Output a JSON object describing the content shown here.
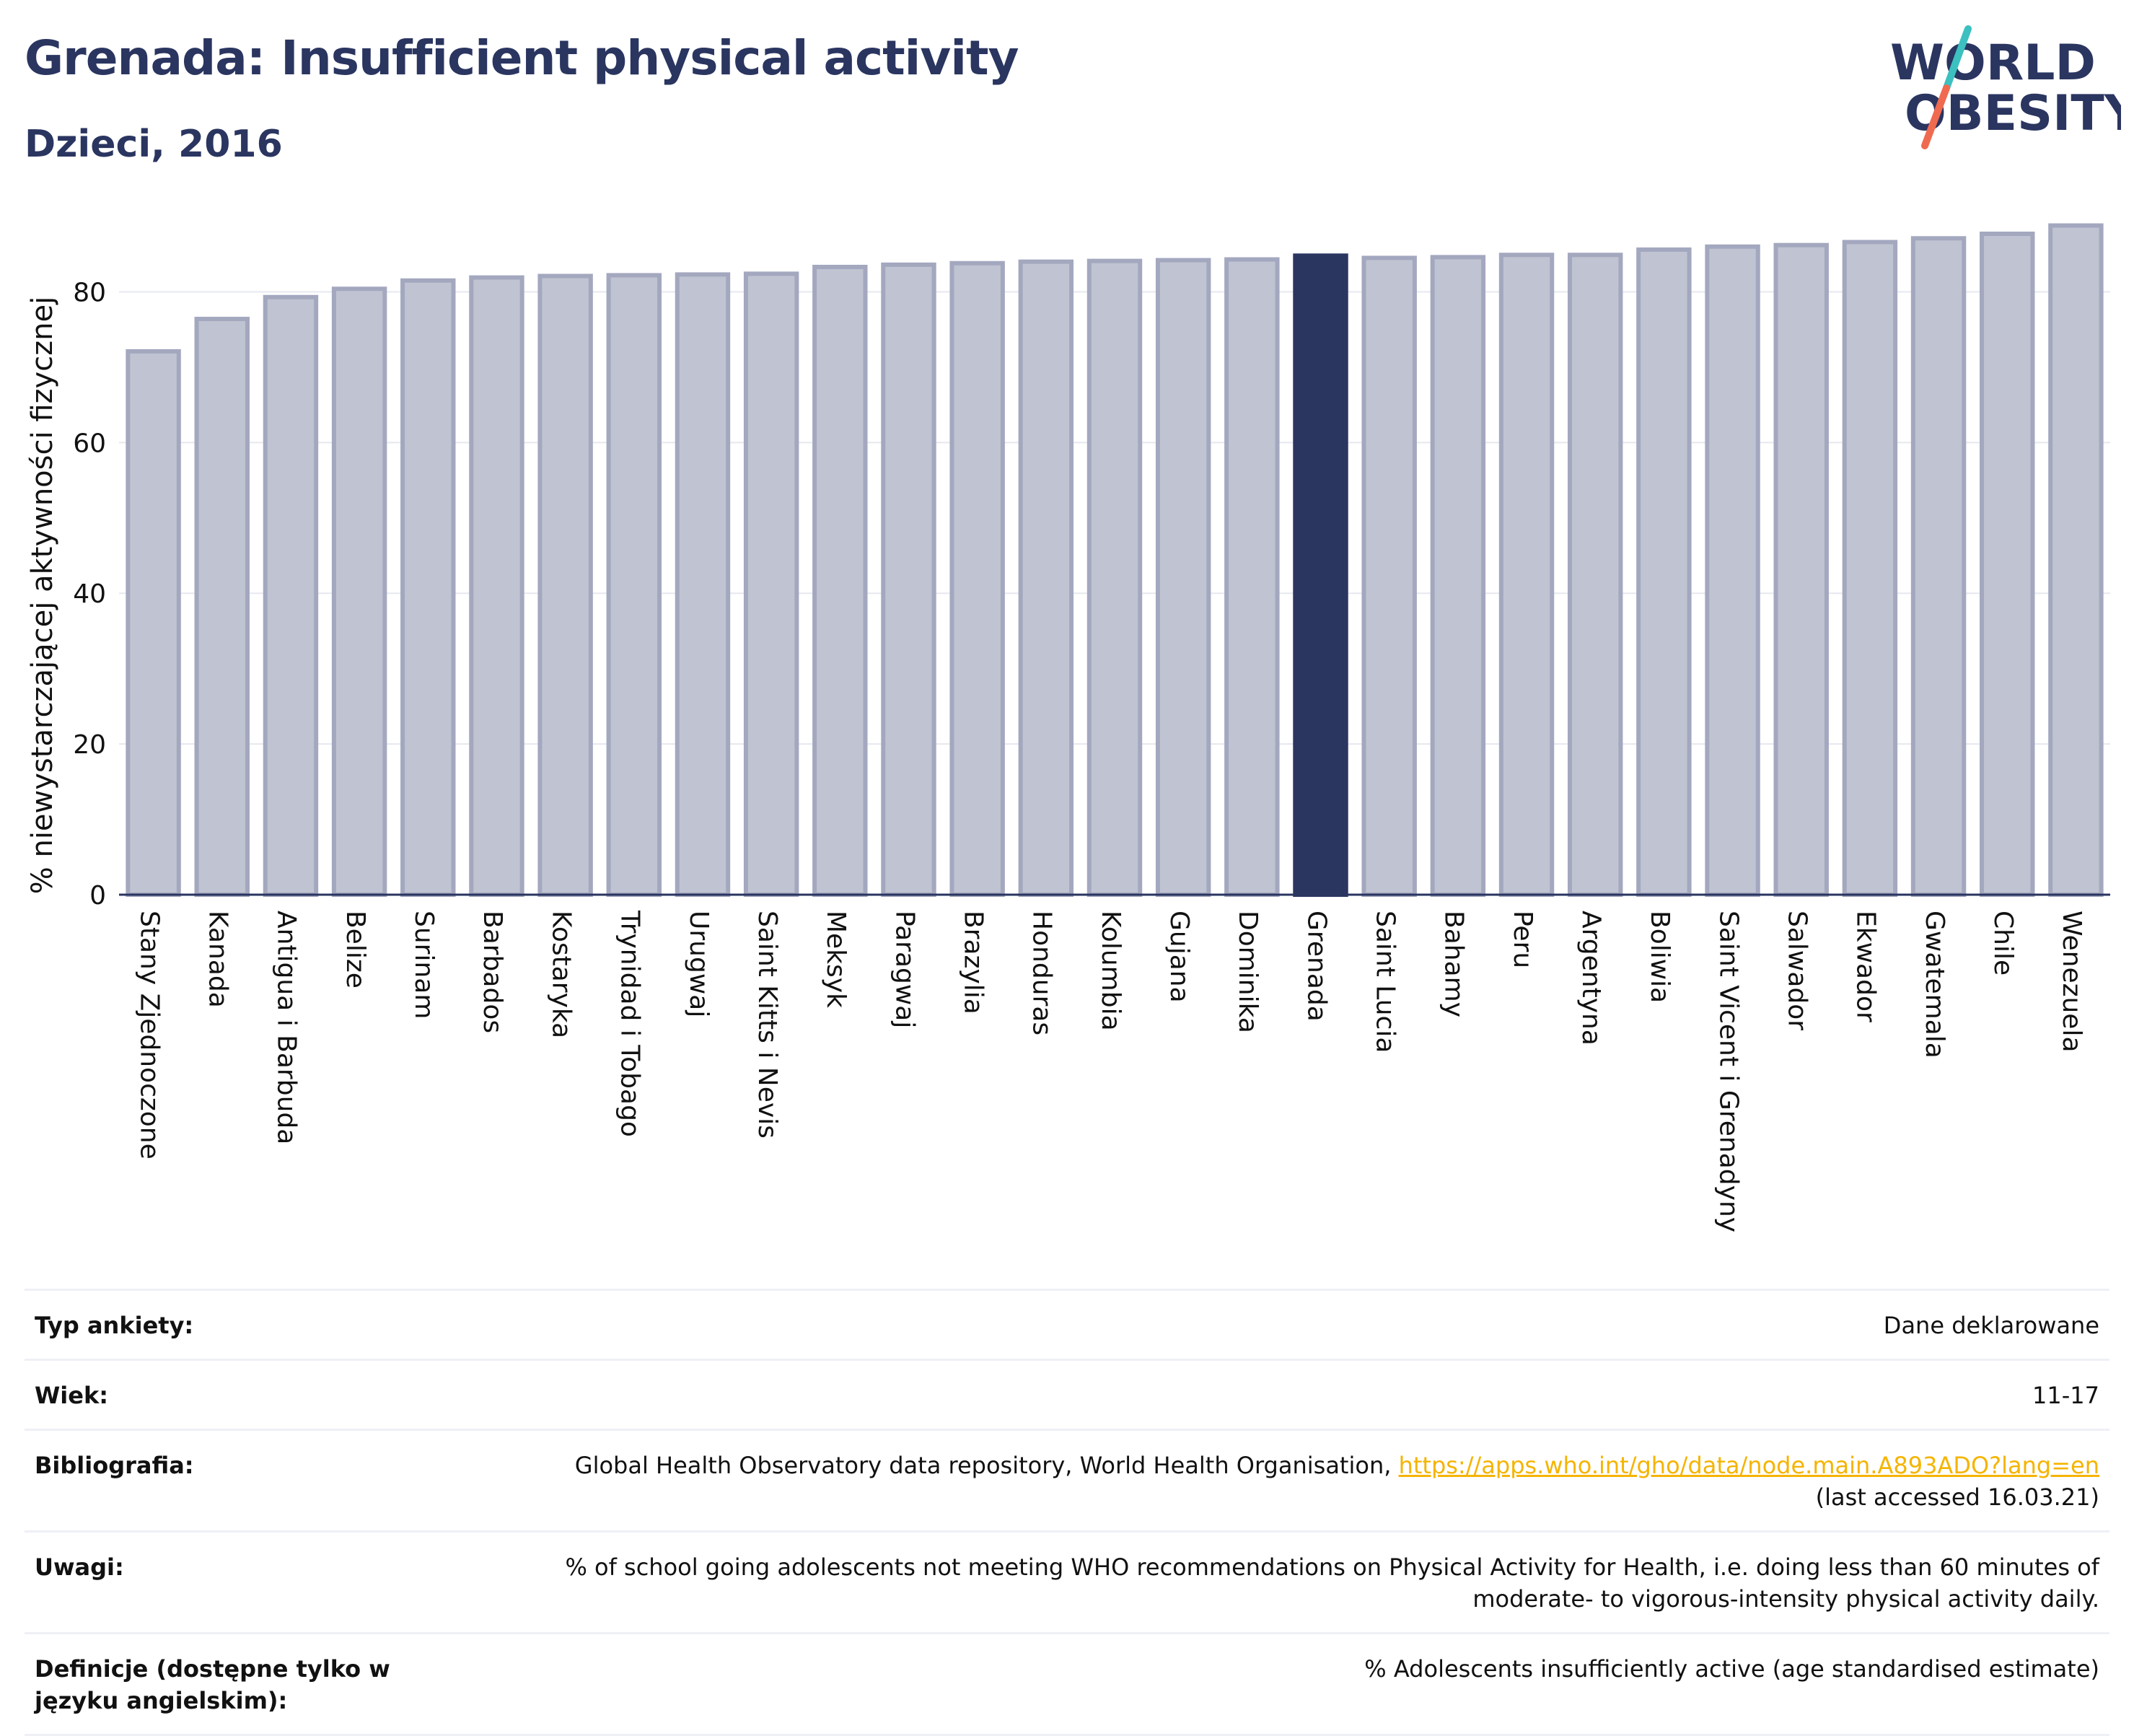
{
  "header": {
    "title": "Grenada: Insufficient physical activity",
    "subtitle": "Dzieci, 2016",
    "logo_line1": "WORLD",
    "logo_line2": "OBESITY"
  },
  "colors": {
    "highlight": "#2a3560",
    "bar_fill": "#c0c3d1",
    "bar_stroke": "#a3a8bf",
    "title": "#2a3560",
    "link": "#f5b400",
    "logo_slash_top": "#3cc0c0",
    "logo_slash_bottom": "#f06a50"
  },
  "chart_data": {
    "type": "bar",
    "title": "",
    "xlabel": "",
    "ylabel": "% niewystarczającej aktywności fizycznej",
    "ylim": [
      0,
      90
    ],
    "yticks": [
      0,
      20,
      40,
      60,
      80
    ],
    "grid": true,
    "highlight": "Grenada",
    "categories": [
      "Stany Zjednoczone",
      "Kanada",
      "Antigua i Barbuda",
      "Belize",
      "Surinam",
      "Barbados",
      "Kostaryka",
      "Trynidad i Tobago",
      "Urugwaj",
      "Saint Kitts i Nevis",
      "Meksyk",
      "Paragwaj",
      "Brazylia",
      "Honduras",
      "Kolumbia",
      "Gujana",
      "Dominika",
      "Grenada",
      "Saint Lucia",
      "Bahamy",
      "Peru",
      "Argentyna",
      "Boliwia",
      "Saint Vicent i Grenadyny",
      "Salwador",
      "Ekwador",
      "Gwatemala",
      "Chile",
      "Wenezuela"
    ],
    "values": [
      72.1,
      76.4,
      79.3,
      80.4,
      81.5,
      81.9,
      82.1,
      82.2,
      82.3,
      82.4,
      83.3,
      83.6,
      83.8,
      84.0,
      84.1,
      84.2,
      84.3,
      84.8,
      84.5,
      84.6,
      84.9,
      84.9,
      85.6,
      86.0,
      86.2,
      86.6,
      87.1,
      87.7,
      88.8
    ]
  },
  "info": {
    "survey_label": "Typ ankiety:",
    "survey_value": "Dane deklarowane",
    "age_label": "Wiek:",
    "age_value": "11-17",
    "bib_label": "Bibliografia:",
    "bib_text": "Global Health Observatory data repository, World Health Organisation,",
    "bib_link": "https://apps.who.int/gho/data/node.main.A893ADO?lang=en",
    "bib_accessed": "(last accessed 16.03.21)",
    "notes_label": "Uwagi:",
    "notes_line1": "% of school going adolescents not meeting WHO recommendations on Physical Activity for Health, i.e. doing less than 60 minutes of",
    "notes_line2": "moderate- to vigorous-intensity physical activity daily.",
    "def_label": "Definicje (dostępne tylko w języku angielskim):",
    "def_value": "% Adolescents insufficiently active (age standardised estimate)"
  }
}
